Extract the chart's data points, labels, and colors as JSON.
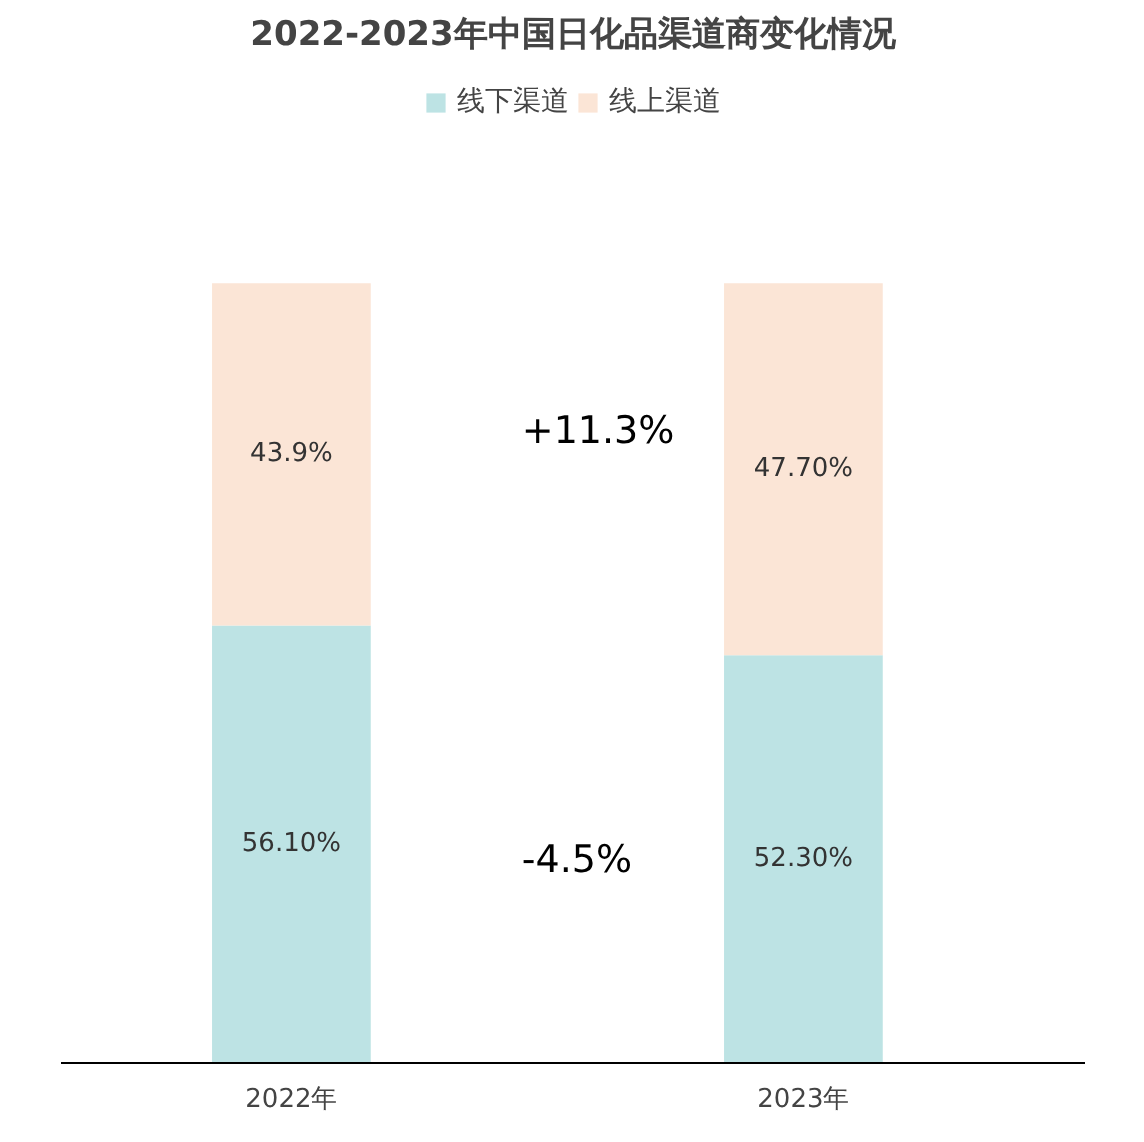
{
  "chart_data": {
    "type": "bar",
    "title": "2022-2023年中国日化品渠道商变化情况",
    "stacked": true,
    "categories": [
      "2022年",
      "2023年"
    ],
    "series": [
      {
        "name": "线下渠道",
        "color": "#bde3e4",
        "values": [
          56.1,
          52.3
        ],
        "value_labels": [
          "56.10%",
          "52.30%"
        ]
      },
      {
        "name": "线上渠道",
        "color": "#fbe5d6",
        "values": [
          43.9,
          47.7
        ],
        "value_labels": [
          "43.9%",
          "47.70%"
        ]
      }
    ],
    "annotations": [
      "+11.3%",
      "-4.5%"
    ],
    "legend": "top",
    "grid": false
  }
}
